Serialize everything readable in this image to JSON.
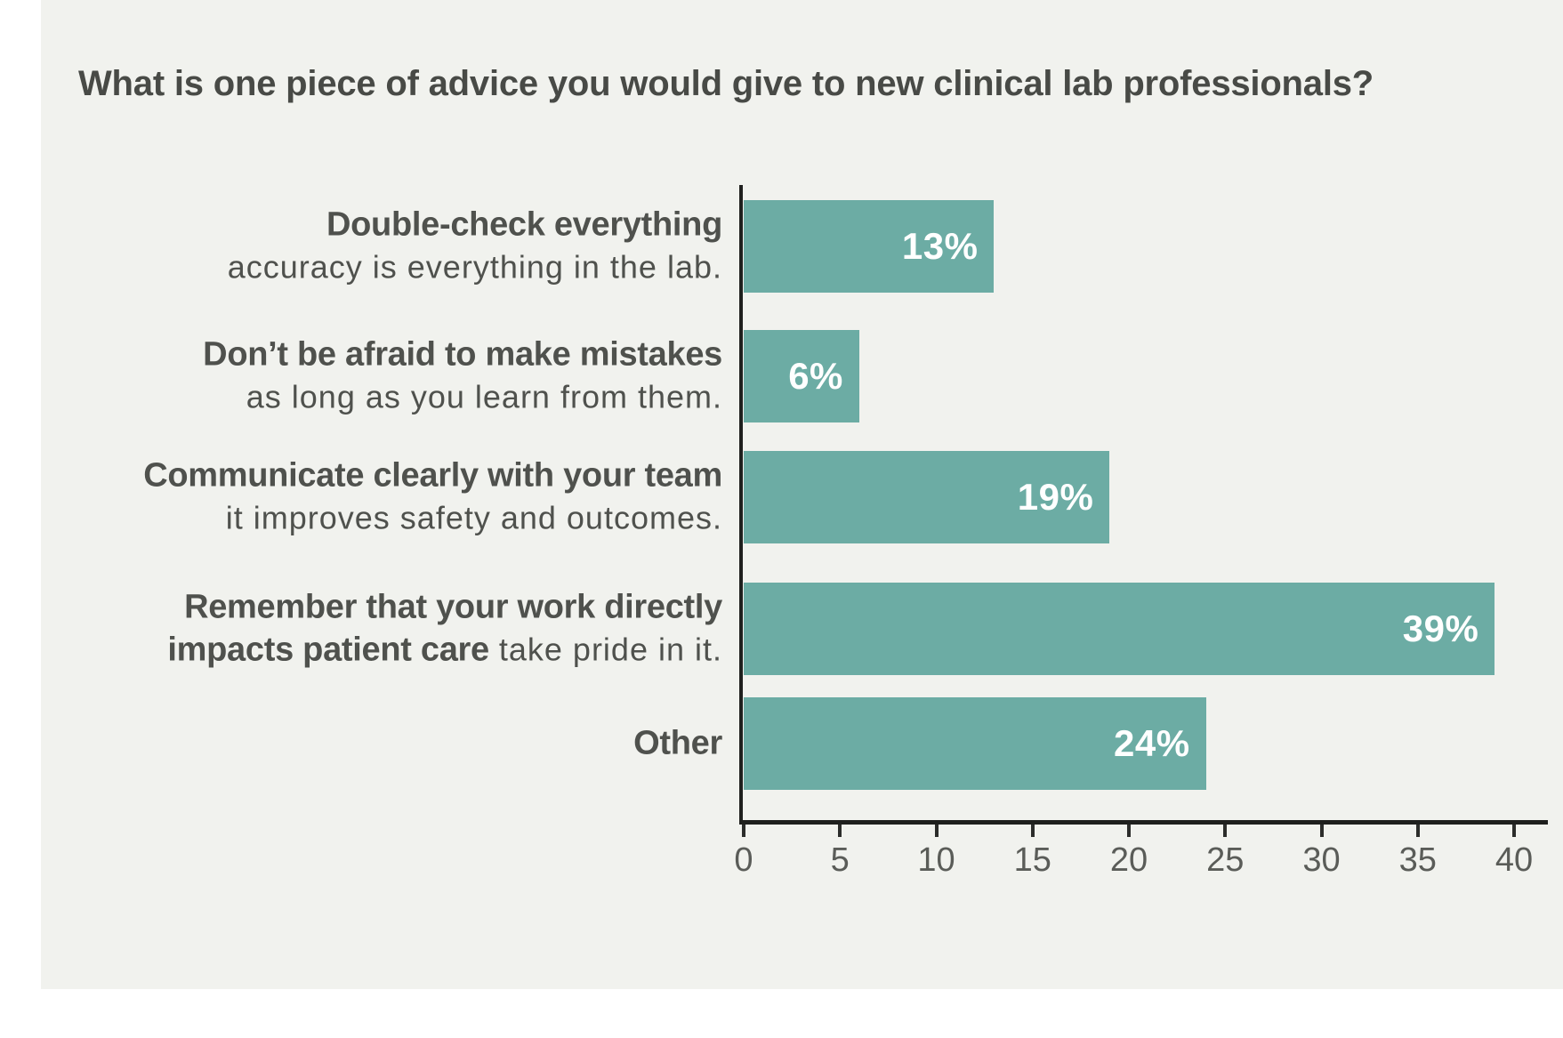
{
  "chart_data": {
    "type": "bar",
    "orientation": "horizontal",
    "title": "What is one piece of advice you would give to new clinical lab professionals?",
    "xlabel": "",
    "ylabel": "",
    "xlim": [
      0,
      40
    ],
    "x_ticks": [
      "0",
      "5",
      "10",
      "15",
      "20",
      "25",
      "30",
      "35",
      "40"
    ],
    "grid": false,
    "legend": false,
    "unit": "percent",
    "bar_color": "#6caca4",
    "value_text_color": "#ffffff",
    "panel_background": "#f1f2ee",
    "categories": [
      "Double-check everything accuracy is everything in the lab.",
      "Don’t be afraid to make mistakes as long as you learn from them.",
      "Communicate clearly with your team it improves safety and outcomes.",
      "Remember that your work directly impacts patient care take pride in it.",
      "Other"
    ],
    "values": [
      13,
      6,
      19,
      39,
      24
    ],
    "rows": [
      {
        "title": "Double-check everything",
        "sub_bold": "",
        "sub": "accuracy is everything in the lab.",
        "value": 13,
        "value_label": "13%"
      },
      {
        "title": "Don’t be afraid to make mistakes",
        "sub_bold": "",
        "sub": "as long as you learn from them.",
        "value": 6,
        "value_label": "6%"
      },
      {
        "title": "Communicate clearly with your team",
        "sub_bold": "",
        "sub": "it improves safety and outcomes.",
        "value": 19,
        "value_label": "19%"
      },
      {
        "title": "Remember that your work directly",
        "sub_bold": "impacts patient care",
        "sub": " take pride in it.",
        "value": 39,
        "value_label": "39%"
      },
      {
        "title": "Other",
        "sub_bold": "",
        "sub": "",
        "value": 24,
        "value_label": "24%"
      }
    ]
  }
}
